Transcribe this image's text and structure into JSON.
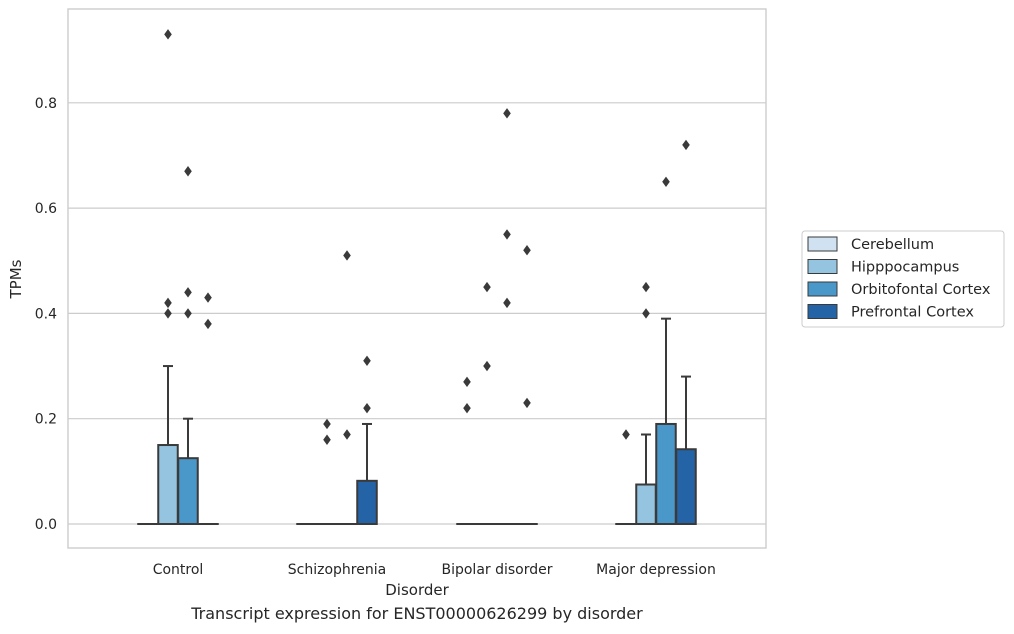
{
  "caption": "Transcript expression for ENST00000626299 by disorder",
  "chart_data": {
    "type": "box",
    "xlabel": "Disorder",
    "ylabel": "TPMs",
    "ylim": [
      -0.045,
      0.97
    ],
    "yticks": [
      0.0,
      0.2,
      0.4,
      0.6,
      0.8
    ],
    "ytick_labels": [
      "0.0",
      "0.2",
      "0.4",
      "0.6",
      "0.8"
    ],
    "grid": "horizontal",
    "legend_placement": "right, outside plot",
    "categories": [
      "Control",
      "Schizophrenia",
      "Bipolar disorder",
      "Major depression"
    ],
    "series": [
      {
        "name": "Cerebellum",
        "color": "#d0e1f2",
        "boxes": [
          {
            "q1": 0,
            "median": 0,
            "q3": 0,
            "whisker_low": 0,
            "whisker_high": 0,
            "outliers": []
          },
          {
            "q1": 0,
            "median": 0,
            "q3": 0,
            "whisker_low": 0,
            "whisker_high": 0,
            "outliers": []
          },
          {
            "q1": 0,
            "median": 0,
            "q3": 0,
            "whisker_low": 0,
            "whisker_high": 0,
            "outliers": [
              0.27,
              0.22
            ]
          },
          {
            "q1": 0,
            "median": 0,
            "q3": 0,
            "whisker_low": 0,
            "whisker_high": 0,
            "outliers": [
              0.17
            ]
          }
        ]
      },
      {
        "name": "Hipppocampus",
        "color": "#94c4df",
        "boxes": [
          {
            "q1": 0,
            "median": 0,
            "q3": 0.15,
            "whisker_low": 0,
            "whisker_high": 0.3,
            "outliers": [
              0.93,
              0.42,
              0.4
            ]
          },
          {
            "q1": 0,
            "median": 0,
            "q3": 0,
            "whisker_low": 0,
            "whisker_high": 0,
            "outliers": [
              0.19,
              0.16
            ]
          },
          {
            "q1": 0,
            "median": 0,
            "q3": 0,
            "whisker_low": 0,
            "whisker_high": 0,
            "outliers": [
              0.45,
              0.3
            ]
          },
          {
            "q1": 0,
            "median": 0,
            "q3": 0.075,
            "whisker_low": 0,
            "whisker_high": 0.17,
            "outliers": [
              0.45,
              0.4
            ]
          }
        ]
      },
      {
        "name": "Orbitofontal Cortex",
        "color": "#4a98c9",
        "boxes": [
          {
            "q1": 0,
            "median": 0,
            "q3": 0.125,
            "whisker_low": 0,
            "whisker_high": 0.2,
            "outliers": [
              0.67,
              0.44,
              0.4
            ]
          },
          {
            "q1": 0,
            "median": 0,
            "q3": 0,
            "whisker_low": 0,
            "whisker_high": 0,
            "outliers": [
              0.51,
              0.17
            ]
          },
          {
            "q1": 0,
            "median": 0,
            "q3": 0,
            "whisker_low": 0,
            "whisker_high": 0,
            "outliers": [
              0.78,
              0.55,
              0.42
            ]
          },
          {
            "q1": 0,
            "median": 0,
            "q3": 0.19,
            "whisker_low": 0,
            "whisker_high": 0.39,
            "outliers": [
              0.65
            ]
          }
        ]
      },
      {
        "name": "Prefrontal Cortex",
        "color": "#2464a6",
        "boxes": [
          {
            "q1": 0,
            "median": 0,
            "q3": 0,
            "whisker_low": 0,
            "whisker_high": 0,
            "outliers": [
              0.43,
              0.38
            ]
          },
          {
            "q1": 0,
            "median": 0,
            "q3": 0.082,
            "whisker_low": 0,
            "whisker_high": 0.19,
            "outliers": [
              0.31,
              0.22
            ]
          },
          {
            "q1": 0,
            "median": 0,
            "q3": 0,
            "whisker_low": 0,
            "whisker_high": 0,
            "outliers": [
              0.52,
              0.23
            ]
          },
          {
            "q1": 0,
            "median": 0,
            "q3": 0.142,
            "whisker_low": 0,
            "whisker_high": 0.28,
            "outliers": [
              0.72
            ]
          }
        ]
      }
    ]
  }
}
